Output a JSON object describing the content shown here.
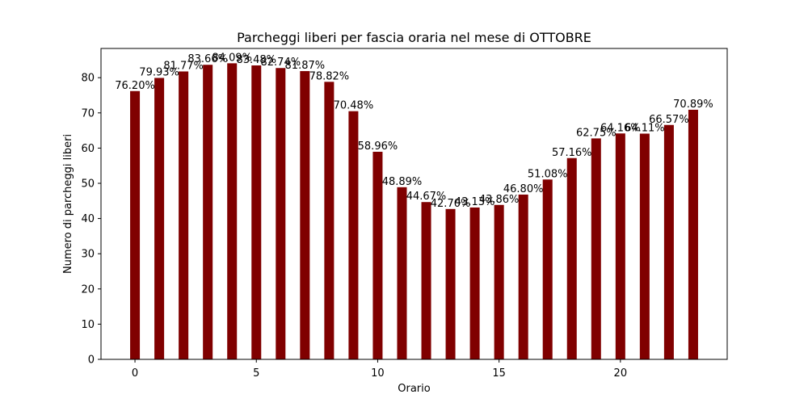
{
  "chart_data": {
    "type": "bar",
    "title": "Parcheggi liberi per fascia oraria nel mese di OTTOBRE",
    "xlabel": "Orario",
    "ylabel": "Numero di parcheggi liberi",
    "x": [
      0,
      1,
      2,
      3,
      4,
      5,
      6,
      7,
      8,
      9,
      10,
      11,
      12,
      13,
      14,
      15,
      16,
      17,
      18,
      19,
      20,
      21,
      22,
      23
    ],
    "values": [
      76.2,
      79.93,
      81.77,
      83.66,
      84.09,
      83.48,
      82.74,
      81.87,
      78.82,
      70.48,
      58.96,
      48.89,
      44.67,
      42.7,
      43.13,
      43.86,
      46.8,
      51.08,
      57.16,
      62.75,
      64.16,
      64.11,
      66.57,
      70.89
    ],
    "data_labels": [
      "76.20%",
      "79.93%",
      "81.77%",
      "83.66%",
      "84.09%",
      "83.48%",
      "82.74%",
      "81.87%",
      "78.82%",
      "70.48%",
      "58.96%",
      "48.89%",
      "44.67%",
      "42.70%",
      "43.13%",
      "43.86%",
      "46.80%",
      "51.08%",
      "57.16%",
      "62.75%",
      "64.16%",
      "64.11%",
      "66.57%",
      "70.89%"
    ],
    "xticks": [
      "0",
      "5",
      "10",
      "15",
      "20"
    ],
    "xtick_values": [
      0,
      5,
      10,
      15,
      20
    ],
    "yticks": [
      "0",
      "10",
      "20",
      "30",
      "40",
      "50",
      "60",
      "70",
      "80"
    ],
    "ytick_values": [
      0,
      10,
      20,
      30,
      40,
      50,
      60,
      70,
      80
    ],
    "xlim": [
      -1.4,
      24.4
    ],
    "ylim": [
      0,
      88.3
    ],
    "bar_color": "#800000",
    "grid": false,
    "legend": "none"
  }
}
